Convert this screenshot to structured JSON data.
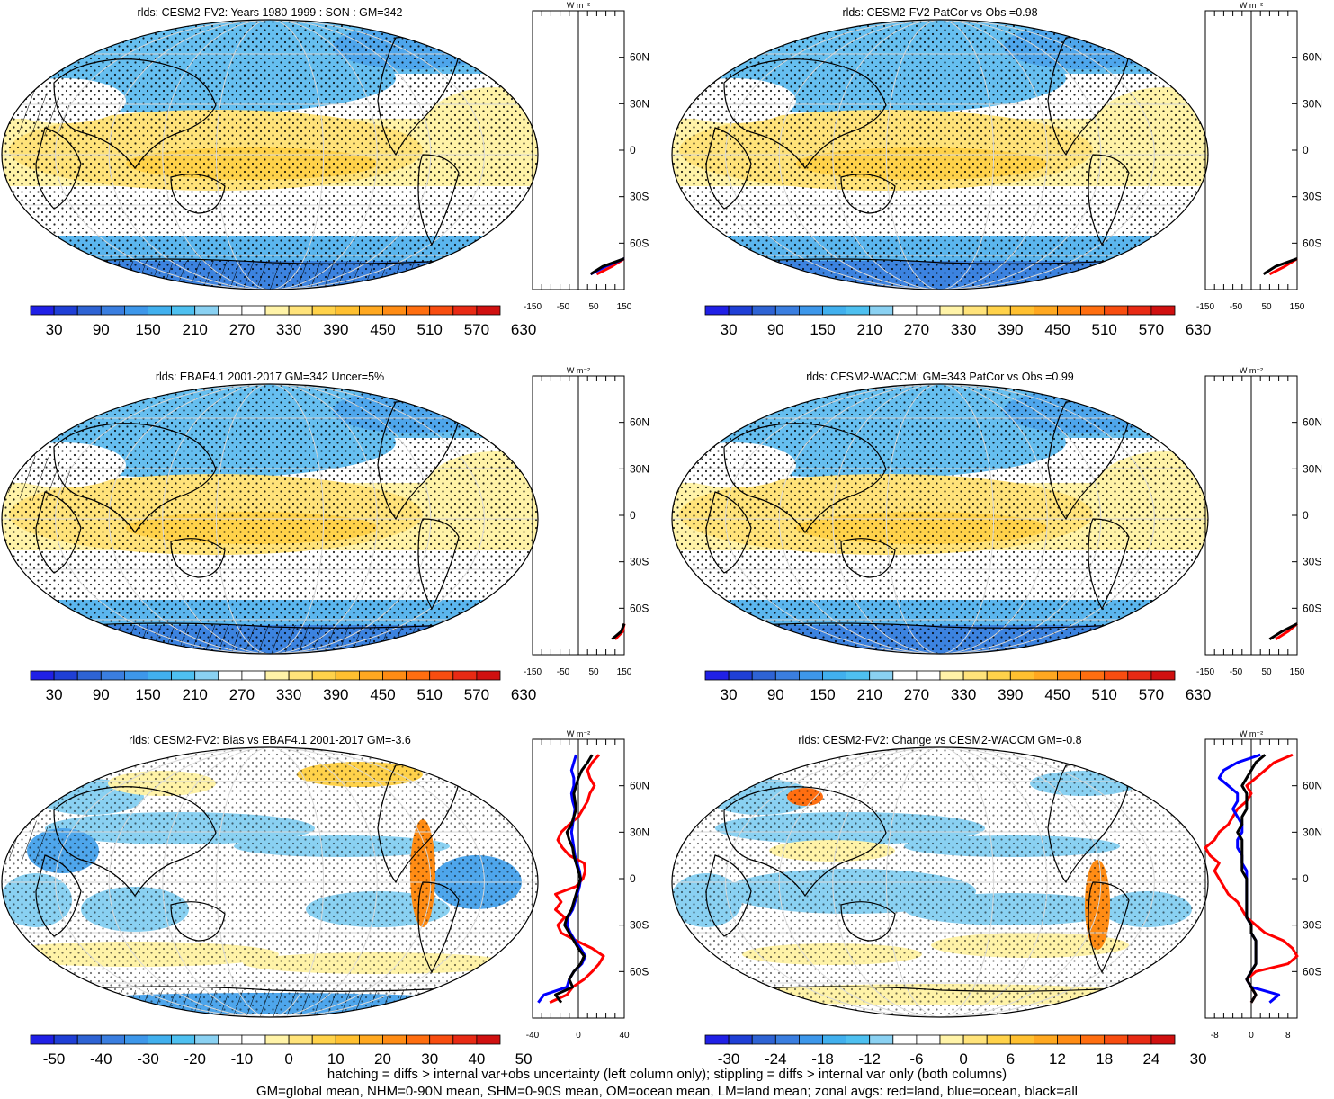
{
  "colors": {
    "abs_scale": [
      "#2020e6",
      "#1f3fd6",
      "#2e63d4",
      "#3a7ee0",
      "#3d97ea",
      "#41b0ee",
      "#4ec0f0",
      "#8ad1f2",
      "#ffffff",
      "#ffffff",
      "#fff3a8",
      "#ffe37a",
      "#ffd24a",
      "#ffc030",
      "#ffa820",
      "#ff8c14",
      "#ff6e10",
      "#f84d10",
      "#e82a14",
      "#d01010"
    ],
    "diff_scale": [
      "#2020e6",
      "#1f3fd6",
      "#2e63d4",
      "#3a7ee0",
      "#3d97ea",
      "#41b0ee",
      "#4ec0f0",
      "#8ad1f2",
      "#ffffff",
      "#ffffff",
      "#fff3a8",
      "#ffe37a",
      "#ffd24a",
      "#ffc030",
      "#ffa820",
      "#ff8c14",
      "#ff6e10",
      "#f84d10",
      "#e82a14",
      "#d01010"
    ],
    "land_line": "#ff0000",
    "ocean_line": "#0000ff",
    "all_line": "#000000"
  },
  "panels": [
    {
      "title": "rlds: CESM2-FV2: Years 1980-1999 : SON : GM=342",
      "colorbar": {
        "labels": [
          "30",
          "90",
          "150",
          "210",
          "270",
          "330",
          "390",
          "450",
          "510",
          "570",
          "630"
        ],
        "scale": "abs"
      },
      "zonal": {
        "units": "W m⁻²",
        "x_ticks": [
          "-150",
          "-50",
          "50",
          "150"
        ],
        "y_ticks": [
          "60N",
          "30N",
          "0",
          "30S",
          "60S"
        ]
      }
    },
    {
      "title": "rlds: CESM2-FV2 PatCor vs Obs =0.98",
      "colorbar": {
        "labels": [
          "30",
          "90",
          "150",
          "210",
          "270",
          "330",
          "390",
          "450",
          "510",
          "570",
          "630"
        ],
        "scale": "abs"
      },
      "zonal": {
        "units": "W m⁻²",
        "x_ticks": [
          "-150",
          "-50",
          "50",
          "150"
        ],
        "y_ticks": [
          "60N",
          "30N",
          "0",
          "30S",
          "60S"
        ]
      }
    },
    {
      "title": "rlds: EBAF4.1 2001-2017 GM=342 Uncer=5%",
      "colorbar": {
        "labels": [
          "30",
          "90",
          "150",
          "210",
          "270",
          "330",
          "390",
          "450",
          "510",
          "570",
          "630"
        ],
        "scale": "abs"
      },
      "zonal": {
        "units": "W m⁻²",
        "x_ticks": [
          "-150",
          "-50",
          "50",
          "150"
        ],
        "y_ticks": [
          "60N",
          "30N",
          "0",
          "30S",
          "60S"
        ]
      }
    },
    {
      "title": "rlds: CESM2-WACCM: GM=343 PatCor vs Obs =0.99",
      "colorbar": {
        "labels": [
          "30",
          "90",
          "150",
          "210",
          "270",
          "330",
          "390",
          "450",
          "510",
          "570",
          "630"
        ],
        "scale": "abs"
      },
      "zonal": {
        "units": "W m⁻²",
        "x_ticks": [
          "-150",
          "-50",
          "50",
          "150"
        ],
        "y_ticks": [
          "60N",
          "30N",
          "0",
          "30S",
          "60S"
        ]
      }
    },
    {
      "title": "rlds: CESM2-FV2: Bias vs EBAF4.1 2001-2017  GM=-3.6",
      "colorbar": {
        "labels": [
          "-50",
          "-40",
          "-30",
          "-20",
          "-10",
          "0",
          "10",
          "20",
          "30",
          "40",
          "50"
        ],
        "scale": "diff"
      },
      "zonal": {
        "units": "W m⁻²",
        "x_ticks": [
          "-40",
          "0",
          "40"
        ],
        "y_ticks": [
          "60N",
          "30N",
          "0",
          "30S",
          "60S"
        ]
      }
    },
    {
      "title": "rlds: CESM2-FV2: Change vs CESM2-WACCM GM=-0.8",
      "colorbar": {
        "labels": [
          "-30",
          "-24",
          "-18",
          "-12",
          "-6",
          "0",
          "6",
          "12",
          "18",
          "24",
          "30"
        ],
        "scale": "diff"
      },
      "zonal": {
        "units": "W m⁻²",
        "x_ticks": [
          "-8",
          "0",
          "8"
        ],
        "y_ticks": [
          "60N",
          "30N",
          "0",
          "30S",
          "60S"
        ]
      }
    }
  ],
  "footer": {
    "line1": "hatching = diffs > internal var+obs uncertainty (left column only); stippling = diffs > internal var only (both columns)",
    "line2": "GM=global mean, NHM=0-90N mean, SHM=0-90S mean, OM=ocean mean, LM=land mean; zonal avgs: red=land, blue=ocean, black=all"
  },
  "chart_data": [
    {
      "type": "heatmap",
      "title": "rlds: CESM2-FV2: Years 1980-1999 : SON : GM=342",
      "colorbar_range": [
        30,
        630
      ],
      "zonal_mean": {
        "xlim": [
          -150,
          150
        ],
        "lat": [
          -80,
          -75,
          -70
        ],
        "all": [
          40,
          80,
          150
        ],
        "land": [
          60,
          110,
          150
        ],
        "ocean": [
          40,
          90,
          150
        ]
      }
    },
    {
      "type": "heatmap",
      "title": "rlds: CESM2-FV2 PatCor vs Obs =0.98",
      "colorbar_range": [
        30,
        630
      ],
      "zonal_mean": {
        "xlim": [
          -150,
          150
        ],
        "lat": [
          -80,
          -75,
          -70
        ],
        "all": [
          40,
          80,
          150
        ],
        "land": [
          60,
          110,
          150
        ]
      }
    },
    {
      "type": "heatmap",
      "title": "rlds: EBAF4.1 2001-2017 GM=342 Uncer=5%",
      "colorbar_range": [
        30,
        630
      ],
      "zonal_mean": {
        "xlim": [
          -150,
          150
        ],
        "lat": [
          -80,
          -75,
          -70
        ],
        "all": [
          110,
          140,
          150
        ],
        "land": [
          120,
          145,
          150
        ]
      }
    },
    {
      "type": "heatmap",
      "title": "rlds: CESM2-WACCM: GM=343 PatCor vs Obs =0.99",
      "colorbar_range": [
        30,
        630
      ],
      "zonal_mean": {
        "xlim": [
          -150,
          150
        ],
        "lat": [
          -80,
          -75,
          -70
        ],
        "all": [
          60,
          100,
          150
        ],
        "land": [
          80,
          120,
          150
        ]
      }
    },
    {
      "type": "heatmap",
      "title": "rlds: CESM2-FV2: Bias vs EBAF4.1 2001-2017  GM=-3.6",
      "colorbar_range": [
        -50,
        50
      ],
      "zonal_mean": {
        "xlim": [
          -40,
          40
        ],
        "lat": [
          -80,
          -75,
          -70,
          -65,
          -60,
          -55,
          -50,
          -45,
          -40,
          -35,
          -30,
          -25,
          -20,
          -15,
          -10,
          -5,
          0,
          5,
          10,
          15,
          20,
          25,
          30,
          35,
          40,
          45,
          50,
          55,
          60,
          65,
          70,
          75,
          80
        ],
        "all": [
          -15,
          -20,
          -5,
          -8,
          -4,
          2,
          5,
          0,
          -4,
          -8,
          -12,
          -10,
          -6,
          -4,
          -2,
          0,
          2,
          0,
          -2,
          -4,
          -5,
          -8,
          -10,
          -6,
          -4,
          -2,
          -3,
          -4,
          -2,
          0,
          3,
          8,
          12
        ],
        "land": [
          -25,
          -10,
          -5,
          5,
          12,
          18,
          22,
          12,
          -2,
          -15,
          -18,
          -12,
          -20,
          -15,
          -20,
          -2,
          4,
          6,
          5,
          -8,
          -14,
          -18,
          -15,
          -8,
          0,
          4,
          8,
          10,
          14,
          10,
          8,
          12,
          18
        ],
        "ocean": [
          -35,
          -30,
          -10,
          -8,
          -4,
          3,
          6,
          2,
          -3,
          -7,
          -10,
          -9,
          -5,
          -3,
          -1,
          1,
          2,
          1,
          -1,
          -3,
          -4,
          -5,
          -6,
          -5,
          -4,
          -3,
          -5,
          -6,
          -4,
          -4,
          -6,
          -4,
          -2
        ]
      }
    },
    {
      "type": "heatmap",
      "title": "rlds: CESM2-FV2: Change vs CESM2-WACCM GM=-0.8",
      "colorbar_range": [
        -30,
        30
      ],
      "zonal_mean": {
        "xlim": [
          -10,
          10
        ],
        "lat": [
          -80,
          -75,
          -70,
          -65,
          -60,
          -55,
          -50,
          -45,
          -40,
          -35,
          -30,
          -25,
          -20,
          -15,
          -10,
          -5,
          0,
          5,
          10,
          15,
          20,
          25,
          30,
          35,
          40,
          45,
          50,
          55,
          60,
          65,
          70,
          75,
          80
        ],
        "all": [
          0,
          1,
          0,
          -1,
          0,
          1,
          1,
          1,
          1,
          0,
          0,
          -1,
          -1,
          -1,
          -1,
          -1,
          -1,
          -2,
          -2,
          -2,
          -2,
          -2,
          -3,
          -2,
          -2,
          -1,
          -1,
          -1,
          -2,
          -1,
          0,
          1,
          3
        ],
        "land": [
          0,
          1,
          0,
          -1,
          1,
          8,
          11,
          9,
          7,
          3,
          1,
          -1,
          -2,
          -3,
          -5,
          -6,
          -7,
          -8,
          -7,
          -9,
          -10,
          -8,
          -7,
          -5,
          -4,
          -3,
          -1,
          0,
          -1,
          1,
          3,
          5,
          9
        ],
        "ocean": [
          4,
          6,
          0,
          -1,
          0,
          1,
          1,
          1,
          1,
          0,
          0,
          -1,
          -1,
          -1,
          -1,
          -1,
          -1,
          -1,
          -2,
          -2,
          -3,
          -3,
          -2,
          -2,
          -3,
          -4,
          -3,
          -3,
          -5,
          -7,
          -6,
          -3,
          2
        ]
      }
    }
  ]
}
